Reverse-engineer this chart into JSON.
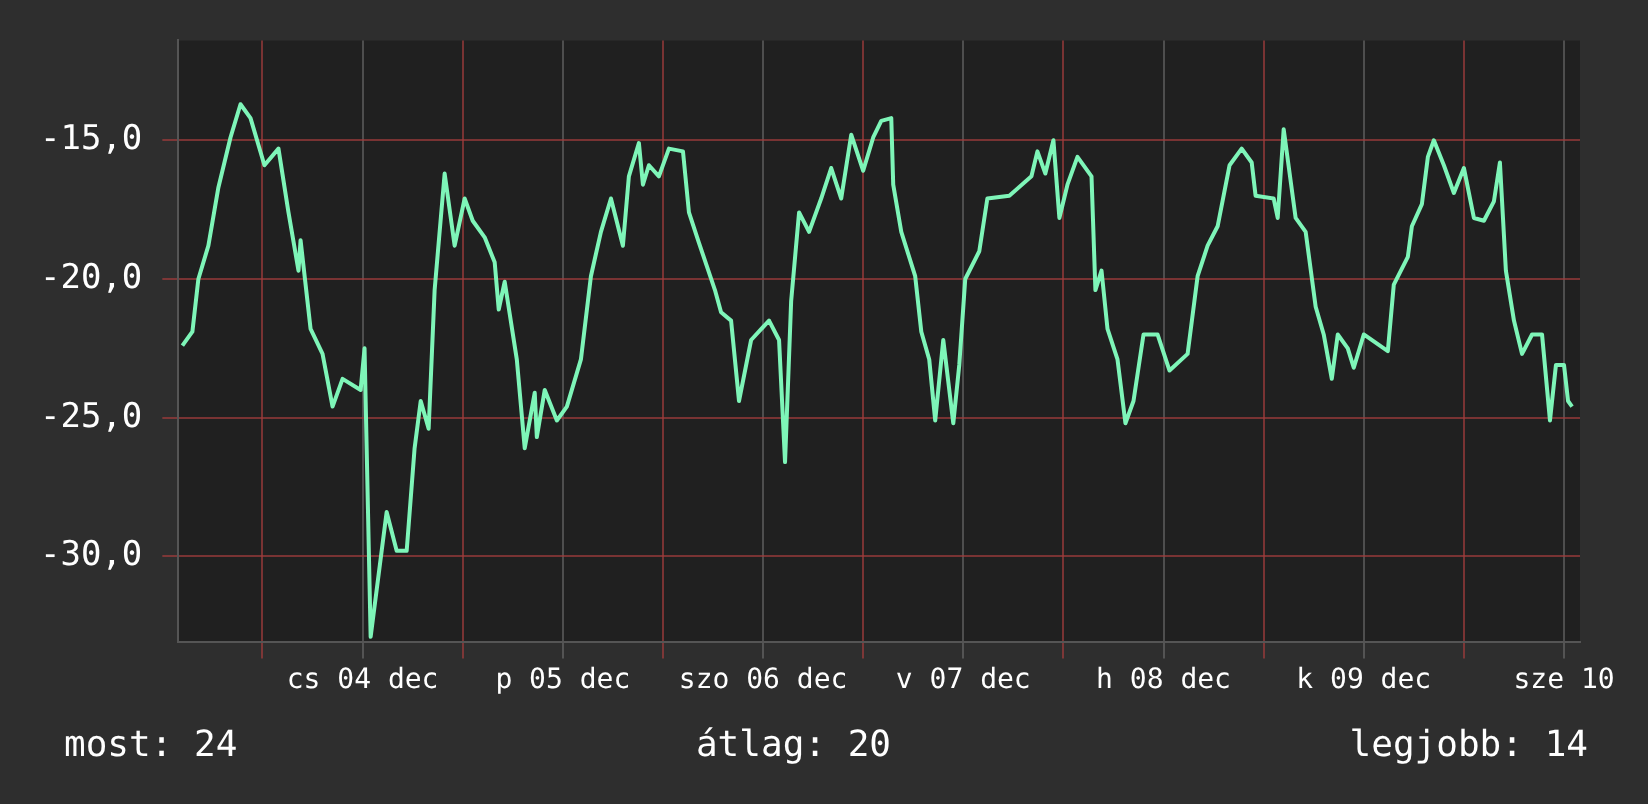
{
  "chart_data": {
    "type": "line",
    "x": [
      "--12-03T14:24",
      "--12-03T15:36",
      "--12-03T16:19",
      "--12-03T17:31",
      "--12-03T18:43",
      "--12-03T20:10",
      "--12-03T21:22",
      "--12-03T22:34",
      "--12-04T00:14",
      "--12-04T01:55",
      "--12-04T03:07",
      "--12-04T04:19",
      "--12-04T04:34",
      "--12-04T05:46",
      "--12-04T07:12",
      "--12-04T08:24",
      "--12-04T09:36",
      "--12-04T11:46",
      "--12-04T12:14",
      "--12-04T12:58",
      "--12-04T14:53",
      "--12-04T16:05",
      "--12-04T17:17",
      "--12-04T18:14",
      "--12-04T18:58",
      "--12-04T19:55",
      "--12-04T20:38",
      "--12-04T21:50",
      "--12-04T23:02",
      "--12-05T00:14",
      "--12-05T01:12",
      "--12-05T02:38",
      "--12-05T03:50",
      "--12-05T04:19",
      "--12-05T05:02",
      "--12-05T06:29",
      "--12-05T07:26",
      "--12-05T08:38",
      "--12-05T08:53",
      "--12-05T09:50",
      "--12-05T11:17",
      "--12-05T12:29",
      "--12-05T14:10",
      "--12-05T15:22",
      "--12-05T16:34",
      "--12-05T17:46",
      "--12-05T19:12",
      "--12-05T19:55",
      "--12-05T21:07",
      "--12-05T21:36",
      "--12-05T22:19",
      "--12-05T23:31",
      "--12-06T00:43",
      "--12-06T02:24",
      "--12-06T03:07",
      "--12-06T04:19",
      "--12-06T06:14",
      "--12-06T06:58",
      "--12-06T08:10",
      "--12-06T09:07",
      "--12-06T10:34",
      "--12-06T12:43",
      "--12-06T13:55",
      "--12-06T14:38",
      "--12-06T15:22",
      "--12-06T16:19",
      "--12-06T17:31",
      "--12-06T18:58",
      "--12-06T20:10",
      "--12-06T21:22",
      "--12-06T22:34",
      "--12-07T00:00",
      "--12-07T01:12",
      "--12-07T02:10",
      "--12-07T03:22",
      "--12-07T03:36",
      "--12-07T04:34",
      "--12-07T06:14",
      "--12-07T06:58",
      "--12-07T07:55",
      "--12-07T08:38",
      "--12-07T09:36",
      "--12-07T10:48",
      "--12-07T11:31",
      "--12-07T12:14",
      "--12-07T13:55",
      "--12-07T14:53",
      "--12-07T17:31",
      "--12-07T20:10",
      "--12-07T20:53",
      "--12-07T21:50",
      "--12-07T22:48",
      "--12-07T23:31",
      "--12-08T00:29",
      "--12-08T01:41",
      "--12-08T03:22",
      "--12-08T03:50",
      "--12-08T04:34",
      "--12-08T05:17",
      "--12-08T06:29",
      "--12-08T07:26",
      "--12-08T08:24",
      "--12-08T09:36",
      "--12-08T11:17",
      "--12-08T12:43",
      "--12-08T14:53",
      "--12-08T16:05",
      "--12-08T17:17",
      "--12-08T18:29",
      "--12-08T19:55",
      "--12-08T21:22",
      "--12-08T22:34",
      "--12-08T23:02",
      "--12-09T01:12",
      "--12-09T01:41",
      "--12-09T02:24",
      "--12-09T03:50",
      "--12-09T05:02",
      "--12-09T06:14",
      "--12-09T07:12",
      "--12-09T08:10",
      "--12-09T08:53",
      "--12-09T10:05",
      "--12-09T10:48",
      "--12-09T12:00",
      "--12-09T14:53",
      "--12-09T15:36",
      "--12-09T17:17",
      "--12-09T17:46",
      "--12-09T18:58",
      "--12-09T19:41",
      "--12-09T20:24",
      "--12-09T21:36",
      "--12-09T22:48",
      "--12-10T00:00",
      "--12-10T01:12",
      "--12-10T02:24",
      "--12-10T03:36",
      "--12-10T04:19",
      "--12-10T05:02",
      "--12-10T06:00",
      "--12-10T06:58",
      "--12-10T08:10",
      "--12-10T09:22",
      "--12-10T10:19",
      "--12-10T11:02",
      "--12-10T12:00",
      "--12-10T12:29",
      "--12-10T12:58"
    ],
    "series": [
      {
        "color": "#7ef5b8",
        "values": [
          -22.4,
          -21.9,
          -20.0,
          -18.8,
          -16.7,
          -14.9,
          -13.7,
          -14.2,
          -15.9,
          -15.3,
          -17.6,
          -19.7,
          -18.6,
          -21.8,
          -22.7,
          -24.6,
          -23.6,
          -24.0,
          -22.5,
          -32.9,
          -28.4,
          -29.8,
          -29.8,
          -26.1,
          -24.4,
          -25.4,
          -20.4,
          -16.2,
          -18.8,
          -17.1,
          -17.9,
          -18.5,
          -19.4,
          -21.1,
          -20.1,
          -22.9,
          -26.1,
          -24.1,
          -25.7,
          -24.0,
          -25.1,
          -24.6,
          -22.9,
          -19.9,
          -18.3,
          -17.1,
          -18.8,
          -16.3,
          -15.1,
          -16.6,
          -15.9,
          -16.3,
          -15.3,
          -15.4,
          -17.6,
          -18.7,
          -20.4,
          -21.2,
          -21.5,
          -24.4,
          -22.2,
          -21.5,
          -22.2,
          -26.6,
          -20.8,
          -17.6,
          -18.3,
          -17.1,
          -16.0,
          -17.1,
          -14.8,
          -16.1,
          -14.9,
          -14.3,
          -14.2,
          -16.6,
          -18.3,
          -19.9,
          -21.9,
          -22.9,
          -25.1,
          -22.2,
          -25.2,
          -23.1,
          -20.0,
          -19.0,
          -17.1,
          -17.0,
          -16.3,
          -15.4,
          -16.2,
          -15.0,
          -17.8,
          -16.6,
          -15.6,
          -16.3,
          -20.4,
          -19.7,
          -21.8,
          -22.9,
          -25.2,
          -24.4,
          -22.0,
          -22.0,
          -23.3,
          -22.7,
          -19.9,
          -18.8,
          -18.1,
          -15.9,
          -15.3,
          -15.8,
          -17.0,
          -17.1,
          -17.8,
          -14.6,
          -17.8,
          -18.3,
          -21.0,
          -22.0,
          -23.6,
          -22.0,
          -22.5,
          -23.2,
          -22.0,
          -22.6,
          -20.2,
          -19.2,
          -18.1,
          -17.3,
          -15.6,
          -15.0,
          -15.9,
          -16.9,
          -16.0,
          -17.8,
          -17.9,
          -17.2,
          -15.8,
          -19.7,
          -21.5,
          -22.7,
          -22.0,
          -22.0,
          -25.1,
          -23.1,
          -23.1,
          -24.4,
          -24.6
        ]
      }
    ],
    "xlim": [
      "--12-03T13:55",
      "--12-10T13:55"
    ],
    "xticks": [
      {
        "value": "--12-04T00:00",
        "label": null
      },
      {
        "value": "--12-04T12:00",
        "label": "cs 04 dec"
      },
      {
        "value": "--12-05T00:00",
        "label": null
      },
      {
        "value": "--12-05T12:00",
        "label": "p 05 dec"
      },
      {
        "value": "--12-06T00:00",
        "label": null
      },
      {
        "value": "--12-06T12:00",
        "label": "szo 06 dec"
      },
      {
        "value": "--12-07T00:00",
        "label": null
      },
      {
        "value": "--12-07T12:00",
        "label": "v 07 dec"
      },
      {
        "value": "--12-08T00:00",
        "label": null
      },
      {
        "value": "--12-08T12:00",
        "label": "h 08 dec"
      },
      {
        "value": "--12-09T00:00",
        "label": null
      },
      {
        "value": "--12-09T12:00",
        "label": "k 09 dec"
      },
      {
        "value": "--12-10T00:00",
        "label": null
      },
      {
        "value": "--12-10T12:00",
        "label": "sze 10"
      }
    ],
    "ylim": [
      -33.1,
      -11.4
    ],
    "yticks": [
      {
        "value": -30,
        "label": "-30,0"
      },
      {
        "value": -25,
        "label": "-25,0"
      },
      {
        "value": -20,
        "label": "-20,0"
      },
      {
        "value": -15,
        "label": "-15,0"
      }
    ],
    "grid": true,
    "marker": "none",
    "annotations": [
      "most: 24",
      "átlag: 20",
      "legjobb: 14"
    ]
  }
}
